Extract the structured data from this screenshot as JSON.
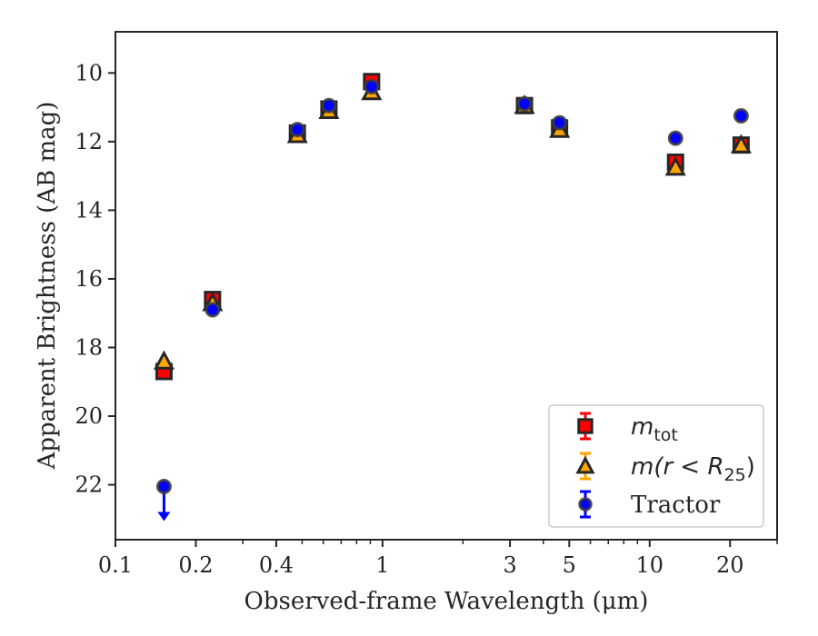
{
  "chart_data": {
    "type": "scatter",
    "xscale": "log",
    "yinverted": true,
    "xlim": [
      0.1,
      30
    ],
    "ylim": [
      8.8,
      23.6
    ],
    "xlabel": "Observed-frame Wavelength (μm)",
    "ylabel": "Apparent Brightness (AB mag)",
    "xticks": [
      {
        "value": 0.1,
        "label": "0.1"
      },
      {
        "value": 0.2,
        "label": "0.2"
      },
      {
        "value": 0.4,
        "label": "0.4"
      },
      {
        "value": 1,
        "label": "1"
      },
      {
        "value": 3,
        "label": "3"
      },
      {
        "value": 5,
        "label": "5"
      },
      {
        "value": 10,
        "label": "10"
      },
      {
        "value": 20,
        "label": "20"
      }
    ],
    "xminor": [
      0.3,
      0.5,
      0.6,
      0.7,
      0.8,
      0.9,
      2,
      4,
      6,
      7,
      8,
      9,
      30
    ],
    "yticks": [
      {
        "value": 10,
        "label": "10"
      },
      {
        "value": 12,
        "label": "12"
      },
      {
        "value": 14,
        "label": "14"
      },
      {
        "value": 16,
        "label": "16"
      },
      {
        "value": 18,
        "label": "18"
      },
      {
        "value": 20,
        "label": "20"
      },
      {
        "value": 22,
        "label": "22"
      }
    ],
    "grid": false,
    "legend_position": "lower-right",
    "series": [
      {
        "name": "m_tot",
        "marker": "square",
        "color": "#ff0000",
        "points": [
          {
            "x": 0.152,
            "y": 18.7
          },
          {
            "x": 0.231,
            "y": 16.6
          },
          {
            "x": 0.48,
            "y": 11.75
          },
          {
            "x": 0.63,
            "y": 11.05
          },
          {
            "x": 0.91,
            "y": 10.25
          },
          {
            "x": 3.4,
            "y": 10.95
          },
          {
            "x": 4.6,
            "y": 11.6
          },
          {
            "x": 12.5,
            "y": 12.6
          },
          {
            "x": 22,
            "y": 12.1
          }
        ]
      },
      {
        "name": "m(r < R25)",
        "marker": "triangle",
        "color": "#ffa500",
        "points": [
          {
            "x": 0.152,
            "y": 18.4
          },
          {
            "x": 0.231,
            "y": 16.7
          },
          {
            "x": 0.48,
            "y": 11.8
          },
          {
            "x": 0.63,
            "y": 11.1
          },
          {
            "x": 0.91,
            "y": 10.55
          },
          {
            "x": 3.4,
            "y": 10.95
          },
          {
            "x": 4.6,
            "y": 11.65
          },
          {
            "x": 12.5,
            "y": 12.75
          },
          {
            "x": 22,
            "y": 12.1
          }
        ]
      },
      {
        "name": "Tractor",
        "marker": "circle",
        "color": "#0000ff",
        "points": [
          {
            "x": 0.152,
            "y": 22.05,
            "upper_limit": true
          },
          {
            "x": 0.231,
            "y": 16.9
          },
          {
            "x": 0.48,
            "y": 11.65
          },
          {
            "x": 0.63,
            "y": 10.95
          },
          {
            "x": 0.91,
            "y": 10.4
          },
          {
            "x": 3.4,
            "y": 10.9
          },
          {
            "x": 4.6,
            "y": 11.45
          },
          {
            "x": 12.5,
            "y": 11.9
          },
          {
            "x": 22,
            "y": 11.25
          }
        ]
      }
    ],
    "legend": [
      {
        "base": "m",
        "sub": "tot",
        "pre": "",
        "post": ""
      },
      {
        "base": "m(r < R",
        "sub": "25",
        "pre": "",
        "post": ")"
      },
      {
        "base": "Tractor",
        "sub": "",
        "pre": "",
        "post": ""
      }
    ]
  }
}
